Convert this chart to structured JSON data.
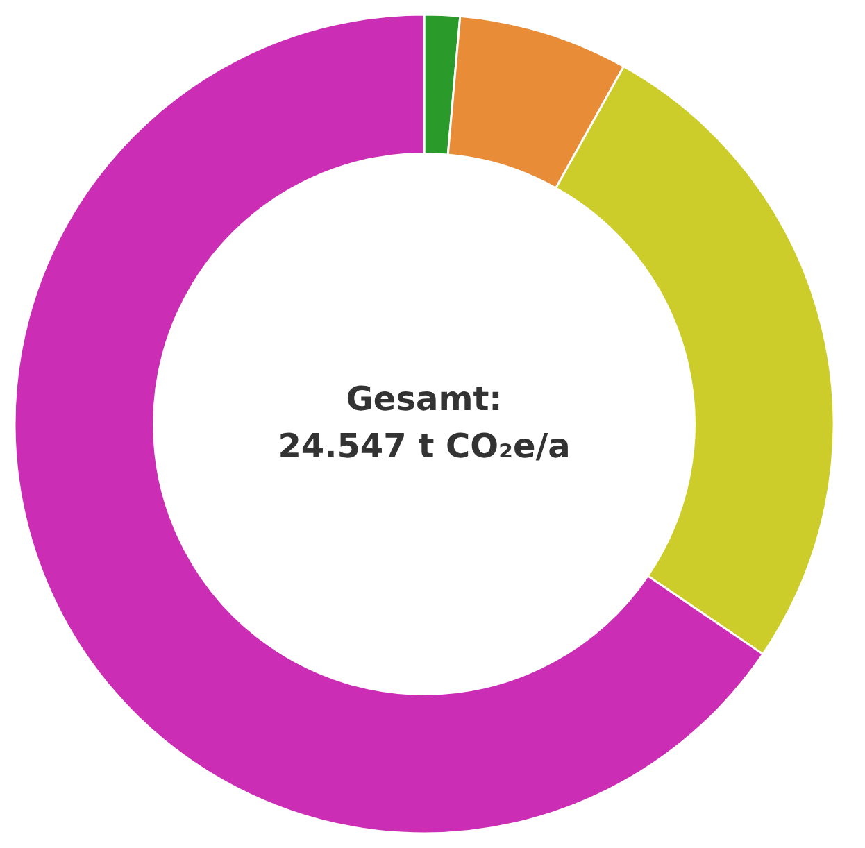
{
  "chart_data": {
    "type": "donut",
    "categories": [
      null,
      null,
      null,
      null
    ],
    "values": [
      1.4,
      6.7,
      26.4,
      65.5
    ],
    "colors": [
      "#2a9a2a",
      "#e88c38",
      "#cccc2a",
      "#cc2db5"
    ],
    "annotations": [
      "Gesamt:",
      "24.547 t CO₂e/a"
    ],
    "legend": false
  }
}
